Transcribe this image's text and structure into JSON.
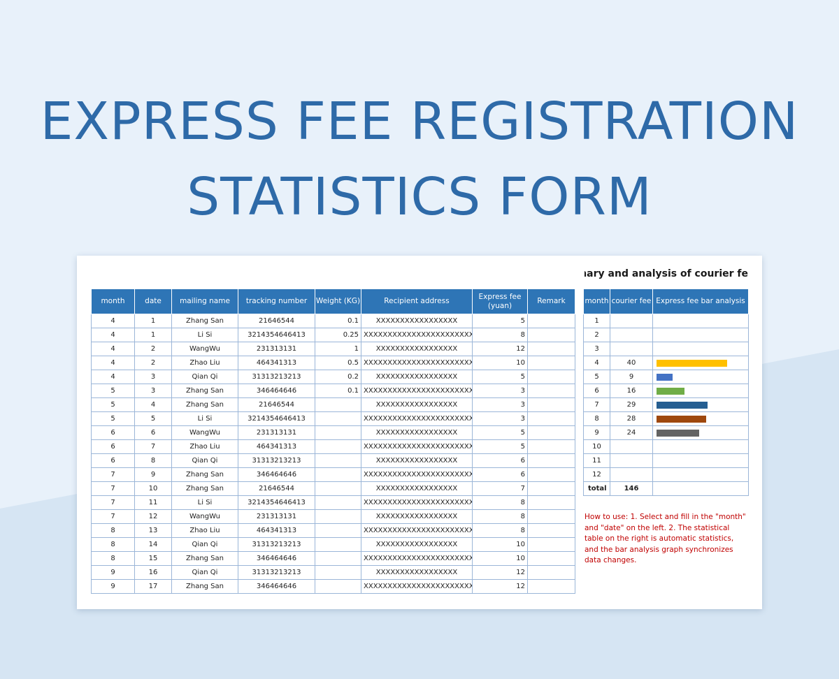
{
  "title": {
    "line1": "EXPRESS FEE REGISTRATION",
    "line2": "STATISTICS FORM"
  },
  "main_table": {
    "headers": [
      "month",
      "date",
      "mailing name",
      "tracking number",
      "Weight (KG)",
      "Recipient address",
      "Express fee (yuan)",
      "Remark"
    ],
    "rows": [
      [
        "4",
        "1",
        "Zhang San",
        "21646544",
        "0.1",
        "XXXXXXXXXXXXXXXXX",
        "5",
        ""
      ],
      [
        "4",
        "1",
        "Li Si",
        "3214354646413",
        "0.25",
        "XXXXXXXXXXXXXXXXXXXXXXXXXXX",
        "8",
        ""
      ],
      [
        "4",
        "2",
        "WangWu",
        "231313131",
        "1",
        "XXXXXXXXXXXXXXXXX",
        "12",
        ""
      ],
      [
        "4",
        "2",
        "Zhao Liu",
        "464341313",
        "0.5",
        "XXXXXXXXXXXXXXXXXXXXXXXXXXX",
        "10",
        ""
      ],
      [
        "4",
        "3",
        "Qian Qi",
        "31313213213",
        "0.2",
        "XXXXXXXXXXXXXXXXX",
        "5",
        ""
      ],
      [
        "5",
        "3",
        "Zhang San",
        "346464646",
        "0.1",
        "XXXXXXXXXXXXXXXXXXXXXXXXXXX",
        "3",
        ""
      ],
      [
        "5",
        "4",
        "Zhang San",
        "21646544",
        "",
        "XXXXXXXXXXXXXXXXX",
        "3",
        ""
      ],
      [
        "5",
        "5",
        "Li Si",
        "3214354646413",
        "",
        "XXXXXXXXXXXXXXXXXXXXXXXXXXX",
        "3",
        ""
      ],
      [
        "6",
        "6",
        "WangWu",
        "231313131",
        "",
        "XXXXXXXXXXXXXXXXX",
        "5",
        ""
      ],
      [
        "6",
        "7",
        "Zhao Liu",
        "464341313",
        "",
        "XXXXXXXXXXXXXXXXXXXXXXXXXXX",
        "5",
        ""
      ],
      [
        "6",
        "8",
        "Qian Qi",
        "31313213213",
        "",
        "XXXXXXXXXXXXXXXXX",
        "6",
        ""
      ],
      [
        "7",
        "9",
        "Zhang San",
        "346464646",
        "",
        "XXXXXXXXXXXXXXXXXXXXXXXXXXX",
        "6",
        ""
      ],
      [
        "7",
        "10",
        "Zhang San",
        "21646544",
        "",
        "XXXXXXXXXXXXXXXXX",
        "7",
        ""
      ],
      [
        "7",
        "11",
        "Li Si",
        "3214354646413",
        "",
        "XXXXXXXXXXXXXXXXXXXXXXXXXXX",
        "8",
        ""
      ],
      [
        "7",
        "12",
        "WangWu",
        "231313131",
        "",
        "XXXXXXXXXXXXXXXXX",
        "8",
        ""
      ],
      [
        "8",
        "13",
        "Zhao Liu",
        "464341313",
        "",
        "XXXXXXXXXXXXXXXXXXXXXXXXXXX",
        "8",
        ""
      ],
      [
        "8",
        "14",
        "Qian Qi",
        "31313213213",
        "",
        "XXXXXXXXXXXXXXXXX",
        "10",
        ""
      ],
      [
        "8",
        "15",
        "Zhang San",
        "346464646",
        "",
        "XXXXXXXXXXXXXXXXXXXXXXXXXXX",
        "10",
        ""
      ],
      [
        "9",
        "16",
        "Qian Qi",
        "31313213213",
        "",
        "XXXXXXXXXXXXXXXXX",
        "12",
        ""
      ],
      [
        "9",
        "17",
        "Zhang San",
        "346464646",
        "",
        "XXXXXXXXXXXXXXXXXXXXXXXXXXX",
        "12",
        ""
      ]
    ]
  },
  "summary": {
    "title": "mmary and analysis of courier fe",
    "headers": [
      "month",
      "courier fee",
      "Express fee bar analysis"
    ],
    "rows": [
      {
        "month": "1",
        "fee": ""
      },
      {
        "month": "2",
        "fee": ""
      },
      {
        "month": "3",
        "fee": ""
      },
      {
        "month": "4",
        "fee": "40",
        "color": "#ffc000"
      },
      {
        "month": "5",
        "fee": "9",
        "color": "#4472c4"
      },
      {
        "month": "6",
        "fee": "16",
        "color": "#70ad47"
      },
      {
        "month": "7",
        "fee": "29",
        "color": "#255e91"
      },
      {
        "month": "8",
        "fee": "28",
        "color": "#9e480e"
      },
      {
        "month": "9",
        "fee": "24",
        "color": "#636363"
      },
      {
        "month": "10",
        "fee": ""
      },
      {
        "month": "11",
        "fee": ""
      },
      {
        "month": "12",
        "fee": ""
      }
    ],
    "total_label": "total",
    "total_value": "146",
    "bar_max": 40
  },
  "how_to": "How to use: 1. Select and fill in the \"month\" and \"date\" on the left. 2. The statistical table on the right is automatic statistics, and the bar analysis graph synchronizes data changes."
}
